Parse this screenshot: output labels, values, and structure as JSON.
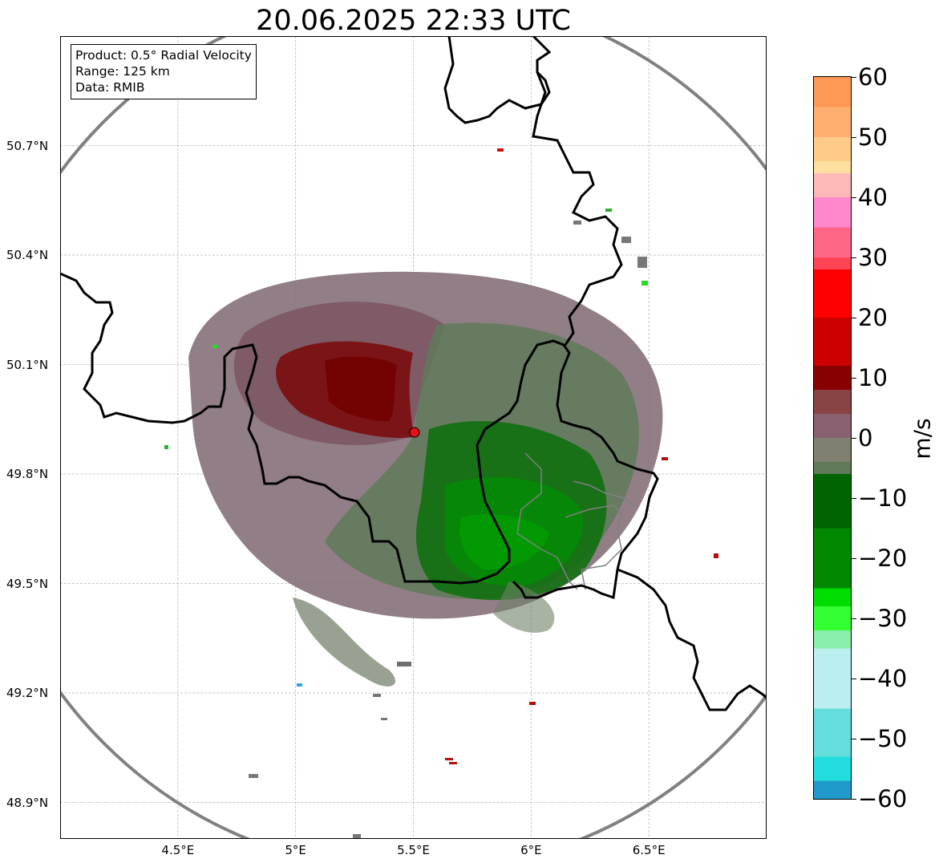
{
  "title": "20.06.2025 22:33 UTC",
  "info_box": {
    "product": "Product: 0.5° Radial Velocity",
    "range": "Range: 125 km",
    "data": "Data: RMIB"
  },
  "map": {
    "lon_range": [
      4.0,
      7.0
    ],
    "lat_range": [
      48.8,
      51.0
    ],
    "radar_site": {
      "lon": 5.505,
      "lat": 49.914
    },
    "lat_ticks": [
      "50.7°N",
      "50.4°N",
      "50.1°N",
      "49.8°N",
      "49.5°N",
      "49.2°N",
      "48.9°N"
    ],
    "lon_ticks": [
      "4.5°E",
      "5°E",
      "5.5°E",
      "6°E",
      "6.5°E"
    ],
    "gridlines": true,
    "range_ring_color": "#808080",
    "border_color": "#000000",
    "radar_marker_color": "#e8101a"
  },
  "colorbar": {
    "label": "m/s",
    "min": -60,
    "max": 60,
    "tick_labels": [
      "60",
      "50",
      "40",
      "30",
      "20",
      "10",
      "0",
      "−10",
      "−20",
      "−30",
      "−40",
      "−50",
      "−60"
    ],
    "tick_values": [
      60,
      50,
      40,
      30,
      20,
      10,
      0,
      -10,
      -20,
      -30,
      -40,
      -50,
      -60
    ],
    "color_stops": [
      {
        "v": 60,
        "c": "#ff9955"
      },
      {
        "v": 55,
        "c": "#ffb070"
      },
      {
        "v": 50,
        "c": "#ffcc88"
      },
      {
        "v": 46,
        "c": "#ffe0a0"
      },
      {
        "v": 44,
        "c": "#ffb8b8"
      },
      {
        "v": 40,
        "c": "#ff88cc"
      },
      {
        "v": 35,
        "c": "#ff6688"
      },
      {
        "v": 30,
        "c": "#ff4455"
      },
      {
        "v": 28,
        "c": "#ff0000"
      },
      {
        "v": 20,
        "c": "#cc0000"
      },
      {
        "v": 12,
        "c": "#880000"
      },
      {
        "v": 8,
        "c": "#884444"
      },
      {
        "v": 4,
        "c": "#886070"
      },
      {
        "v": 0,
        "c": "#808070"
      },
      {
        "v": -4,
        "c": "#607a58"
      },
      {
        "v": -6,
        "c": "#006400"
      },
      {
        "v": -15,
        "c": "#008800"
      },
      {
        "v": -25,
        "c": "#00dd00"
      },
      {
        "v": -28,
        "c": "#33ff33"
      },
      {
        "v": -32,
        "c": "#88eeaa"
      },
      {
        "v": -35,
        "c": "#bbeeee"
      },
      {
        "v": -45,
        "c": "#66dddd"
      },
      {
        "v": -53,
        "c": "#22dddd"
      },
      {
        "v": -57,
        "c": "#2299cc"
      },
      {
        "v": -60,
        "c": "#2277bb"
      }
    ]
  }
}
